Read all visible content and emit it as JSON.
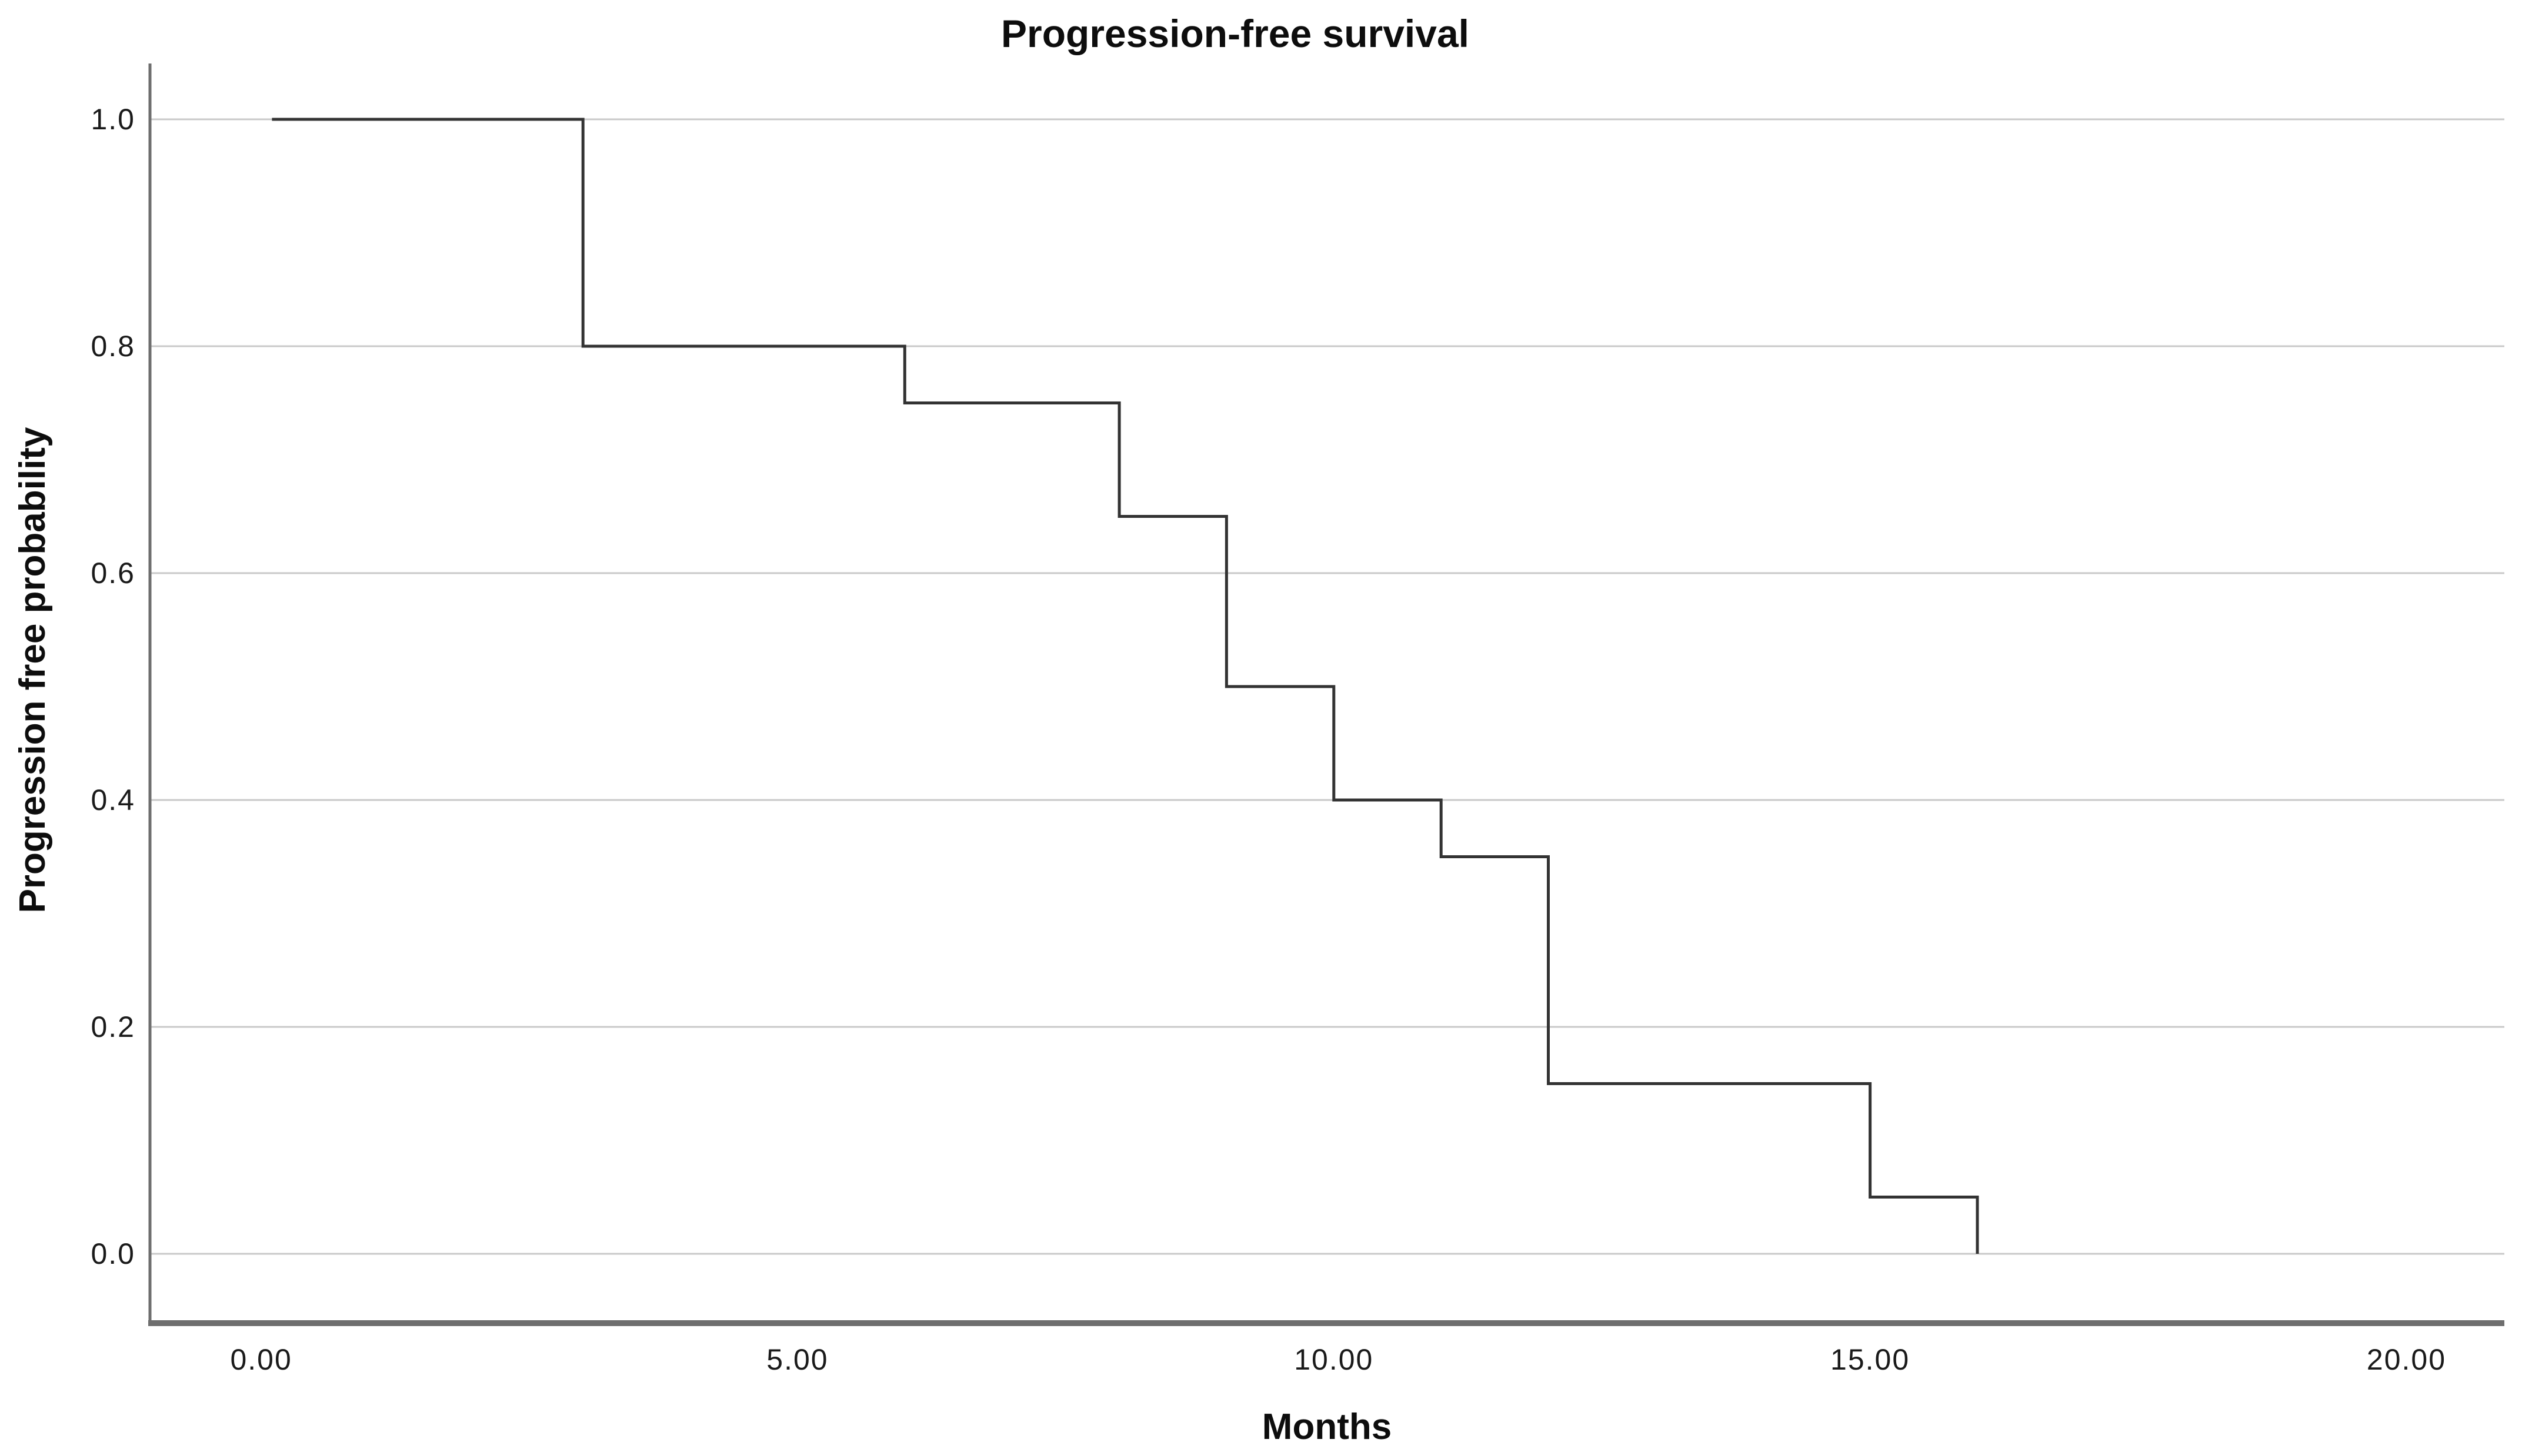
{
  "chart_data": {
    "type": "line",
    "subtype": "kaplan-meier-step",
    "title": "Progression-free survival",
    "xlabel": "Months",
    "ylabel": "Progression free probability",
    "legend": "none",
    "grid": "horizontal-only",
    "xlim": [
      -1.037,
      20.99
    ],
    "ylim": [
      -0.0596,
      1.0378
    ],
    "x_ticks": [
      {
        "value": 0,
        "label": "0.00"
      },
      {
        "value": 5,
        "label": "5.00"
      },
      {
        "value": 10,
        "label": "10.00"
      },
      {
        "value": 15,
        "label": "15.00"
      },
      {
        "value": 20,
        "label": "20.00"
      }
    ],
    "y_ticks": [
      {
        "value": 0.0,
        "label": "0.0"
      },
      {
        "value": 0.2,
        "label": "0.2"
      },
      {
        "value": 0.4,
        "label": "0.4"
      },
      {
        "value": 0.6,
        "label": "0.6"
      },
      {
        "value": 0.8,
        "label": "0.8"
      },
      {
        "value": 1.0,
        "label": "1.0"
      }
    ],
    "series": [
      {
        "name": "Progression-free survival",
        "step": "post",
        "points": [
          [
            0.1,
            1.0
          ],
          [
            3,
            1.0
          ],
          [
            3,
            0.8
          ],
          [
            6,
            0.8
          ],
          [
            6,
            0.75
          ],
          [
            8,
            0.75
          ],
          [
            8,
            0.65
          ],
          [
            9,
            0.65
          ],
          [
            9,
            0.5
          ],
          [
            10,
            0.5
          ],
          [
            10,
            0.4
          ],
          [
            11,
            0.4
          ],
          [
            11,
            0.35
          ],
          [
            12,
            0.35
          ],
          [
            12,
            0.15
          ],
          [
            15,
            0.15
          ],
          [
            15,
            0.05
          ],
          [
            16,
            0.05
          ],
          [
            16,
            0.0
          ]
        ]
      }
    ],
    "event_times": [
      3,
      6,
      8,
      9,
      10,
      11,
      12,
      15,
      16
    ],
    "survival_after_event": [
      0.8,
      0.75,
      0.65,
      0.5,
      0.4,
      0.35,
      0.15,
      0.05,
      0.0
    ],
    "colors": {
      "curve": "#333333",
      "gridline": "#c9c9c9",
      "axis": "#6e6e6e",
      "text": "#0d0d0d",
      "background": "#ffffff"
    }
  }
}
